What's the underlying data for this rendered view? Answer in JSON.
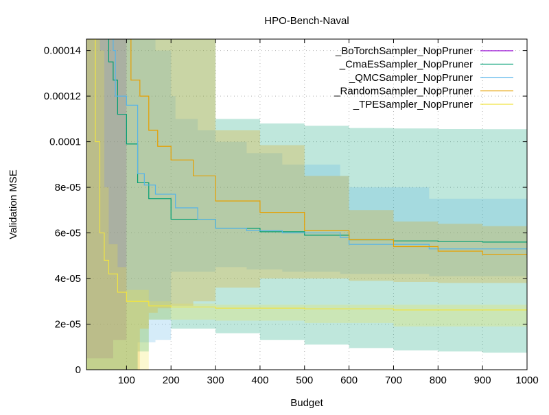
{
  "chart_data": {
    "type": "line",
    "title": "HPO-Bench-Naval",
    "xlabel": "Budget",
    "ylabel": "Validation MSE",
    "xlim": [
      10,
      1000
    ],
    "ylim": [
      0,
      0.000145
    ],
    "grid": true,
    "legend_position": "top-right",
    "xticks": [
      100,
      200,
      300,
      400,
      500,
      600,
      700,
      800,
      900,
      1000
    ],
    "xtick_labels": [
      "100",
      "200",
      "300",
      "400",
      "500",
      "600",
      "700",
      "800",
      "900",
      "1000"
    ],
    "yticks": [
      0,
      2e-05,
      4e-05,
      6e-05,
      8e-05,
      0.0001,
      0.00012,
      0.00014
    ],
    "ytick_labels": [
      "0",
      "2e-05",
      "4e-05",
      "6e-05",
      "8e-05",
      "0.0001",
      "0.00012",
      "0.00014"
    ],
    "series": [
      {
        "name": "_BoTorchSampler_NopPruner",
        "color": "#9400d3",
        "x": [
          10,
          30,
          50,
          70,
          90,
          100
        ],
        "mean": [
          0.00016,
          0.00016,
          0.00016,
          0.00016,
          0.00016,
          0.00016
        ],
        "lower": [
          5e-06,
          5e-06,
          5e-06,
          1.3e-05,
          1.3e-05,
          1.3e-05
        ],
        "upper": [
          0.00016,
          0.00016,
          0.00016,
          0.00016,
          0.00016,
          0.00016
        ]
      },
      {
        "name": "_CmaEsSampler_NopPruner",
        "color": "#009e73",
        "x": [
          10,
          50,
          60,
          70,
          80,
          100,
          125,
          150,
          200,
          300,
          400,
          500,
          600,
          700,
          800,
          900,
          1000
        ],
        "mean": [
          0.00016,
          0.00016,
          0.000135,
          0.000127,
          0.000112,
          9.9e-05,
          8.2e-05,
          7.5e-05,
          6.6e-05,
          6.2e-05,
          6.05e-05,
          5.9e-05,
          5.7e-05,
          5.65e-05,
          5.62e-05,
          5.6e-05,
          5.6e-05
        ],
        "lower": [
          0.0,
          0.0,
          0.0,
          0.0,
          0.0,
          0.0,
          8e-06,
          2.2e-05,
          1.8e-05,
          1.6e-05,
          1.3e-05,
          1.1e-05,
          9.5e-06,
          8.5e-06,
          8e-06,
          7.5e-06,
          7e-06
        ],
        "upper": [
          0.00016,
          0.00016,
          0.00016,
          0.00016,
          0.00016,
          0.00016,
          0.00016,
          0.00016,
          0.00015,
          0.00011,
          0.000108,
          0.000107,
          0.000106,
          0.0001058,
          0.0001056,
          0.0001055,
          0.0001055
        ]
      },
      {
        "name": "_QMCSampler_NopPruner",
        "color": "#56b4e9",
        "x": [
          10,
          60,
          70,
          75,
          100,
          120,
          125,
          140,
          165,
          200,
          210,
          260,
          300,
          370,
          450,
          580,
          600,
          780,
          1000
        ],
        "mean": [
          0.00016,
          0.00016,
          0.00014,
          0.00012,
          0.000116,
          0.000116,
          8.6e-05,
          8.1e-05,
          7.7e-05,
          7.7e-05,
          7.1e-05,
          6.6e-05,
          6.2e-05,
          6.1e-05,
          6e-05,
          5.8e-05,
          5.5e-05,
          5.3e-05,
          4.9e-05
        ],
        "lower": [
          0.0,
          0.0,
          0.0,
          0.0,
          0.0,
          0.0,
          1.2e-05,
          1.2e-05,
          1.3e-05,
          4.3e-05,
          4.3e-05,
          4.3e-05,
          4.5e-05,
          4.4e-05,
          4.3e-05,
          4.2e-05,
          4.2e-05,
          4.1e-05,
          4e-05
        ],
        "upper": [
          0.00016,
          0.00016,
          0.00016,
          0.00016,
          0.00016,
          0.00016,
          0.00016,
          0.00016,
          0.00014,
          0.00012,
          0.00011,
          0.000105,
          0.0001,
          9.5e-05,
          9e-05,
          8.5e-05,
          8e-05,
          7.5e-05,
          7e-05
        ]
      },
      {
        "name": "_RandomSampler_NopPruner",
        "color": "#e69f00",
        "x": [
          10,
          100,
          110,
          130,
          150,
          170,
          200,
          250,
          300,
          400,
          500,
          600,
          700,
          800,
          900,
          1000
        ],
        "mean": [
          0.00016,
          0.00016,
          0.000127,
          0.00012,
          0.000105,
          9.8e-05,
          9.2e-05,
          8.5e-05,
          7.4e-05,
          6.9e-05,
          6.1e-05,
          5.7e-05,
          5.4e-05,
          5.2e-05,
          5.05e-05,
          4.9e-05
        ],
        "lower": [
          0.0,
          0.0,
          0.0,
          1.8e-05,
          2.5e-05,
          2.7e-05,
          2.8e-05,
          3e-05,
          3.6e-05,
          4e-05,
          4e-05,
          3.9e-05,
          3.85e-05,
          3.8e-05,
          3.8e-05,
          3.8e-05
        ],
        "upper": [
          0.00016,
          0.00016,
          0.00016,
          0.00016,
          0.00016,
          0.00016,
          0.00016,
          0.00016,
          0.000105,
          9.85e-05,
          8.5e-05,
          7e-05,
          6.5e-05,
          6.4e-05,
          6.3e-05,
          6.2e-05
        ]
      },
      {
        "name": "_TPESampler_NopPruner",
        "color": "#f0e442",
        "x": [
          10,
          20,
          30,
          40,
          50,
          60,
          80,
          100,
          150,
          200,
          300,
          500,
          700,
          1000
        ],
        "mean": [
          0.00016,
          0.000145,
          0.0001,
          6e-05,
          4.8e-05,
          4.2e-05,
          3.4e-05,
          3e-05,
          2.8e-05,
          2.75e-05,
          2.7e-05,
          2.67e-05,
          2.62e-05,
          2.6e-05
        ],
        "lower": [
          0.0,
          0.0,
          0.0,
          0.0,
          0.0,
          0.0,
          0.0,
          0.0,
          2.2e-05,
          2.2e-05,
          2.15e-05,
          2.05e-05,
          1.9e-05,
          1.9e-05
        ],
        "upper": [
          0.00016,
          0.00016,
          0.00016,
          0.00014,
          8e-05,
          5.5e-05,
          4.5e-05,
          3.5e-05,
          3e-05,
          2.9e-05,
          2.85e-05,
          2.85e-05,
          2.85e-05,
          2.85e-05
        ]
      }
    ]
  }
}
